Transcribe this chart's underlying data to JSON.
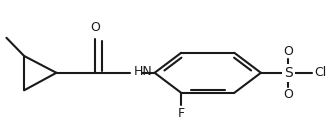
{
  "bg_color": "#ffffff",
  "line_color": "#1a1a1a",
  "line_width": 1.5,
  "font_size": 9,
  "figsize": [
    3.28,
    1.4
  ],
  "dpi": 100,
  "xlim": [
    0,
    1
  ],
  "ylim": [
    0,
    1
  ]
}
